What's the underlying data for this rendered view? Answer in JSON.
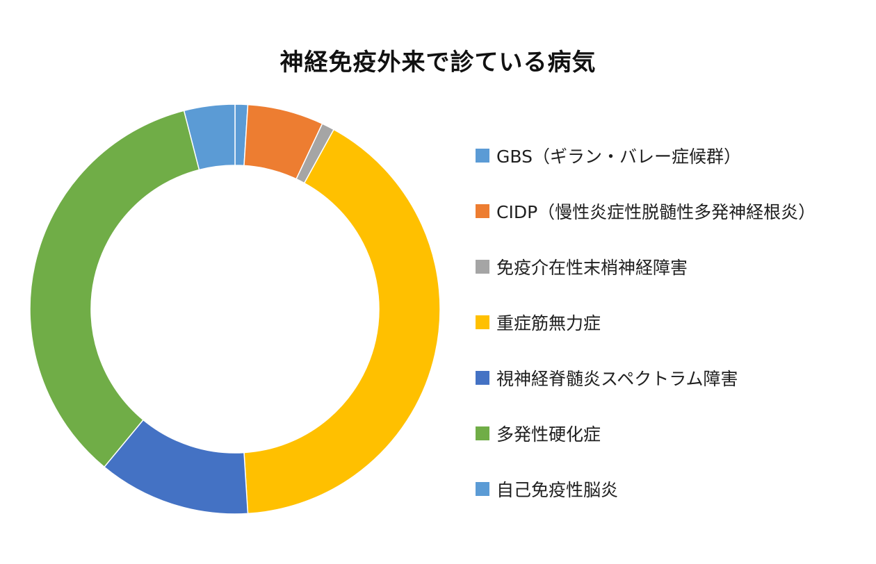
{
  "chart_data": {
    "type": "pie",
    "variant": "donut",
    "title": "神経免疫外来で診ている病気",
    "legend_position": "right",
    "categories": [
      "GBS（ギラン・バレー症候群）",
      "CIDP（慢性炎症性脱髄性多発神経根炎）",
      "免疫介在性末梢神経障害",
      "重症筋無力症",
      "視神経脊髄炎スペクトラム障害",
      "多発性硬化症",
      "自己免疫性脳炎"
    ],
    "values": [
      1,
      6,
      1,
      41,
      12,
      35,
      4
    ],
    "colors": [
      "#5B9BD5",
      "#ED7D31",
      "#A5A5A5",
      "#FFC000",
      "#4472C4",
      "#70AD47",
      "#5B9BD5"
    ]
  }
}
